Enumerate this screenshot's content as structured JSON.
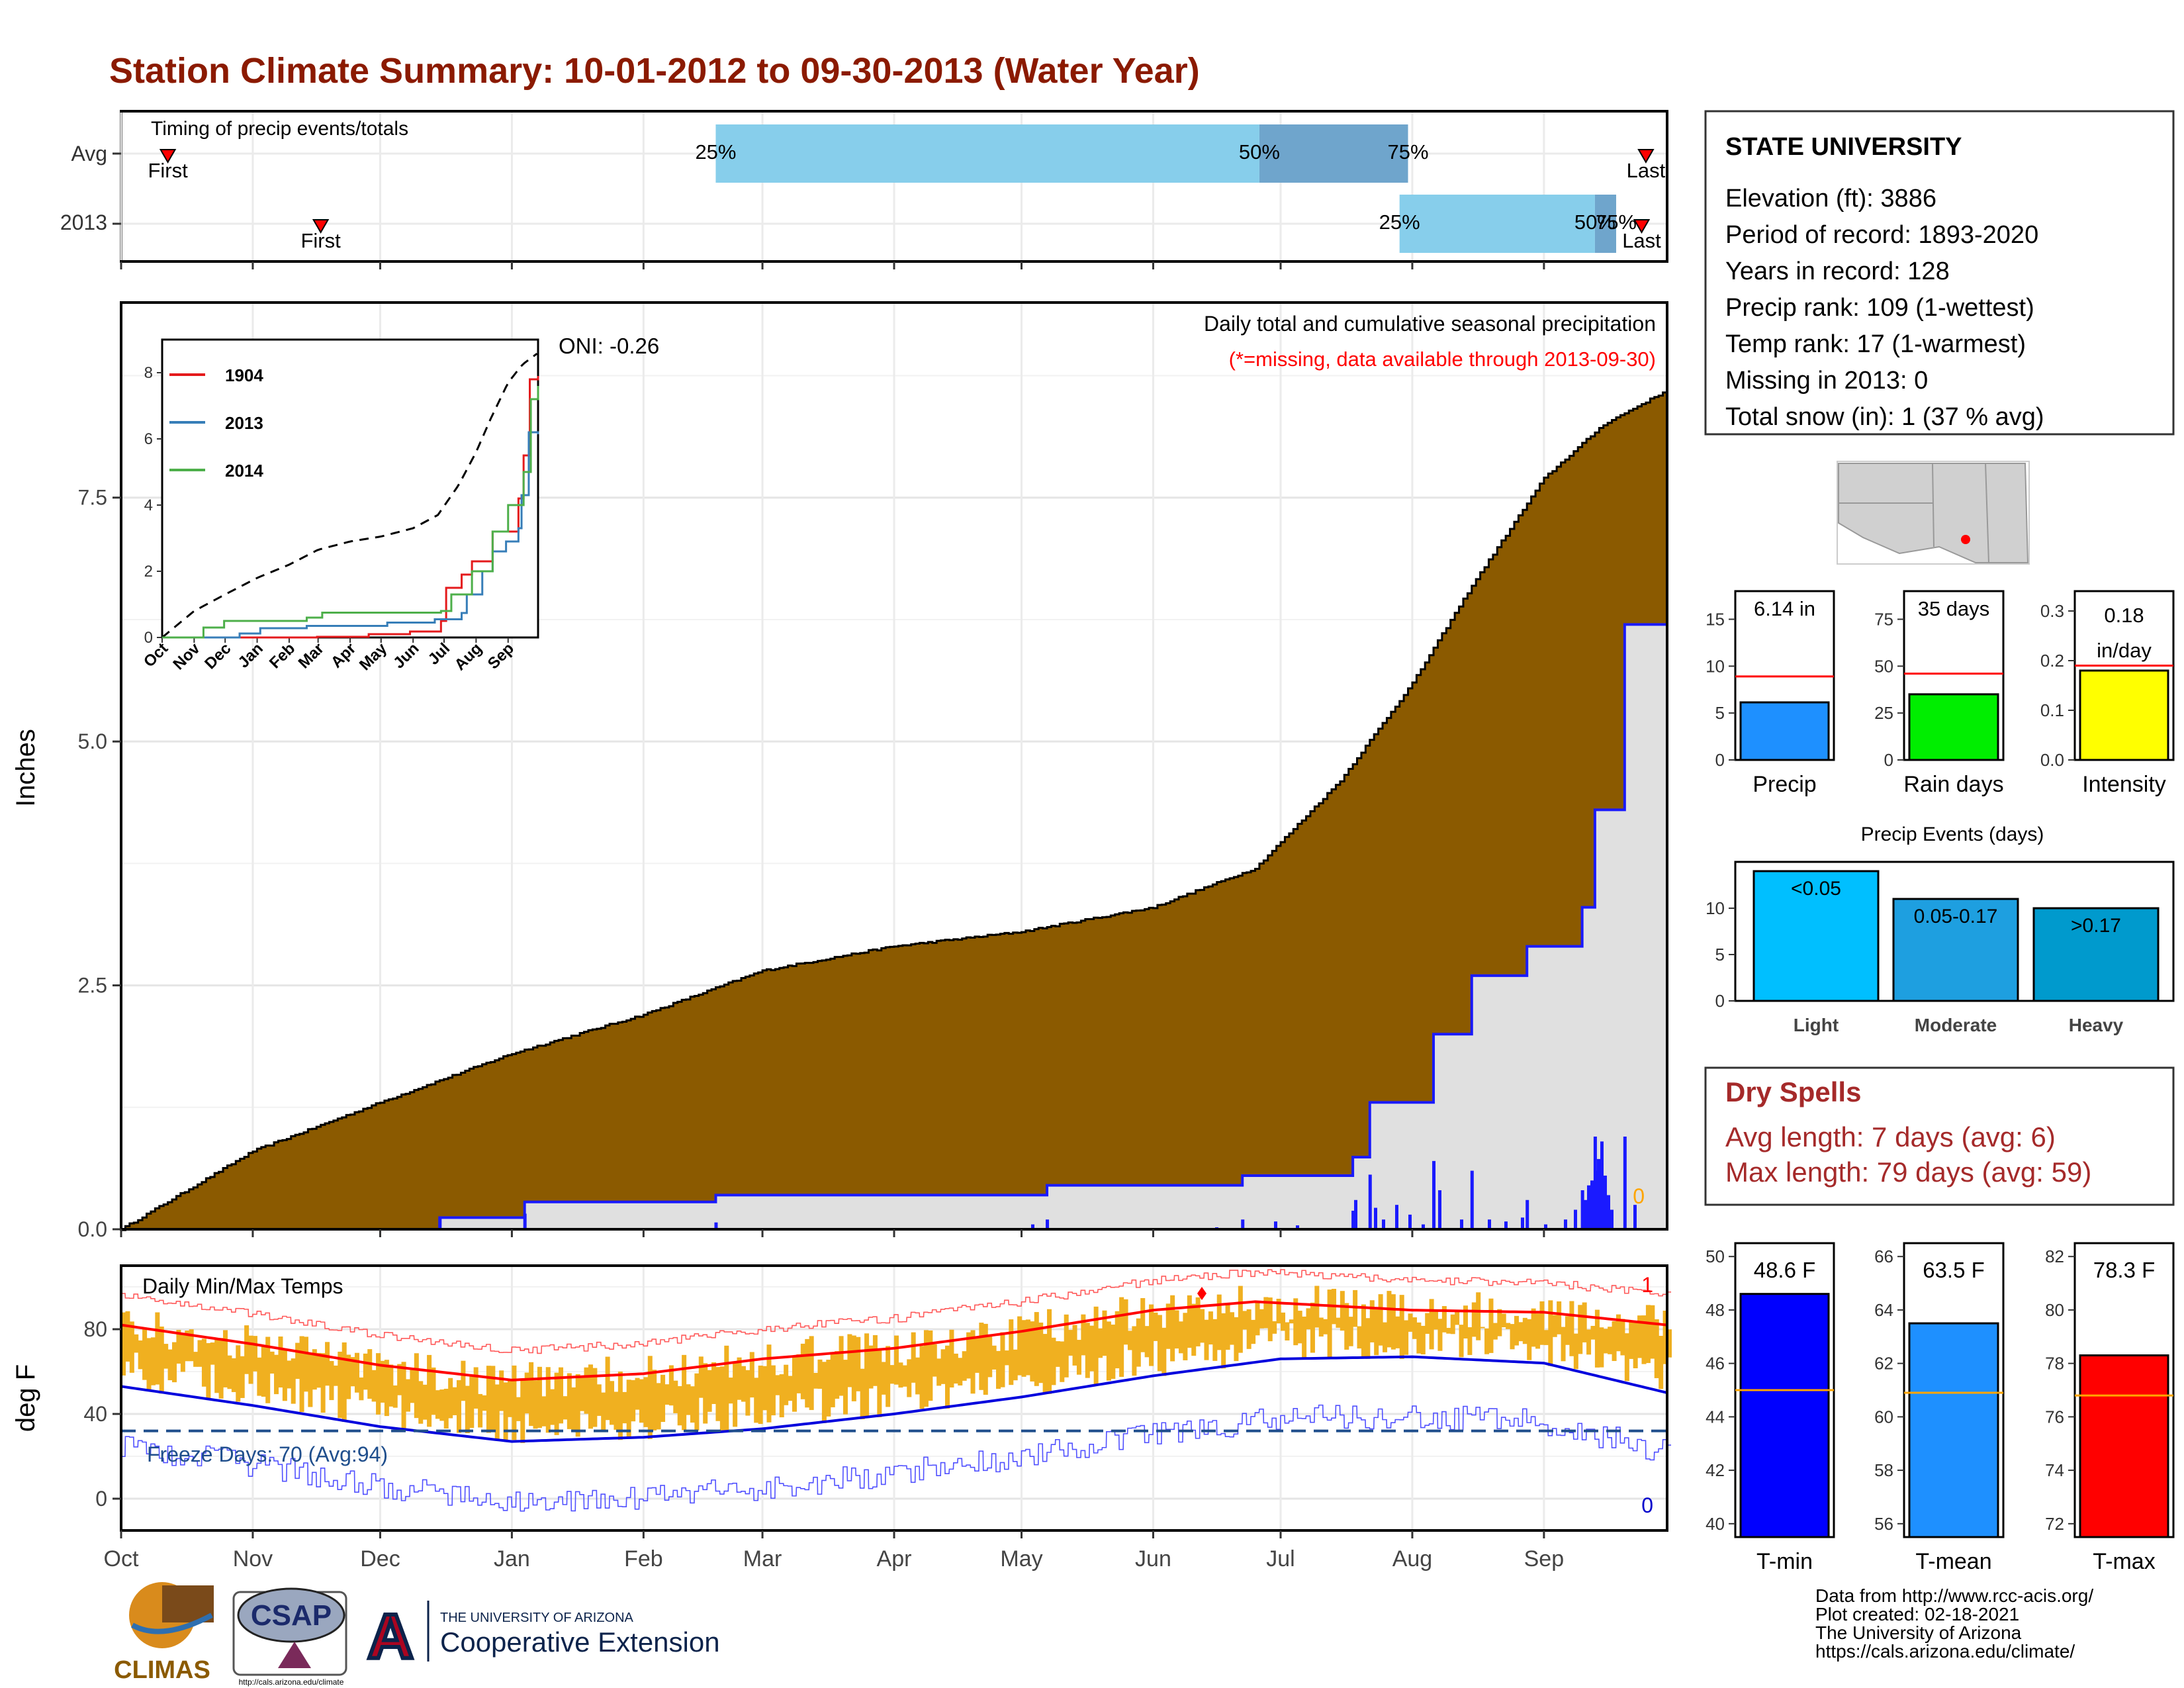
{
  "title": "Station Climate Summary: 10-01-2012 to 09-30-2013 (Water Year)",
  "timing": {
    "label": "Timing of precip events/totals",
    "rows": [
      {
        "name": "Avg",
        "first_pct_label": "First",
        "last_pct_label": "Last",
        "q25": "25%",
        "q50": "50%",
        "q75": "75%",
        "first_date": "2012-10-12",
        "last_date": "2013-09-25",
        "q25_date": "2013-02-18",
        "q50_date": "2013-06-26",
        "q75_date": "2013-07-31"
      },
      {
        "name": "2013",
        "first_pct_label": "First",
        "last_pct_label": "Last",
        "q25": "25%",
        "q50": "50%",
        "q75": "75%",
        "first_date": "2012-11-17",
        "last_date": "2013-09-24",
        "q25_date": "2013-07-29",
        "q50_date": "2013-09-13",
        "q75_date": "2013-09-18"
      }
    ]
  },
  "info": {
    "station": "STATE UNIVERSITY",
    "lines": [
      "Elevation (ft): 3886",
      "Period of record: 1893-2020",
      "Years in record: 128",
      "Precip rank: 109 (1-wettest)",
      "Temp rank: 17 (1-warmest)",
      "Missing in 2013: 0",
      "Total snow (in): 1 (37 % avg)"
    ]
  },
  "precip_panel": {
    "ylabel": "Inches",
    "header": "Daily total and cumulative seasonal precipitation",
    "subheader": "(*=missing, data available through 2013-09-30)",
    "oni": "ONI: -0.26",
    "missing_count": "0",
    "yticks": [
      "0.0",
      "2.5",
      "5.0",
      "7.5"
    ],
    "ylim": [
      0,
      9.5
    ]
  },
  "temp_panel": {
    "ylabel": "deg F",
    "header": "Daily Min/Max Temps",
    "freeze_label": "Freeze Days: 70 (Avg:94)",
    "record_high_count": "1",
    "record_low_count": "0",
    "yticks": [
      "0",
      "40",
      "80"
    ],
    "ylim": [
      -15,
      110
    ]
  },
  "x_axis": {
    "months": [
      "Oct",
      "Nov",
      "Dec",
      "Jan",
      "Feb",
      "Mar",
      "Apr",
      "May",
      "Jun",
      "Jul",
      "Aug",
      "Sep"
    ]
  },
  "inset": {
    "months": [
      "Oct",
      "Nov",
      "Dec",
      "Jan",
      "Feb",
      "Mar",
      "Apr",
      "May",
      "Jun",
      "Jul",
      "Aug",
      "Sep"
    ],
    "yticks": [
      "0",
      "2",
      "4",
      "6",
      "8"
    ],
    "legend": [
      {
        "name": "1904",
        "color": "#e41a1c"
      },
      {
        "name": "2013",
        "color": "#377eb8"
      },
      {
        "name": "2014",
        "color": "#4daf4a"
      }
    ]
  },
  "small_bars": [
    {
      "label": "Precip",
      "value_text": "6.14 in",
      "ticks": [
        "0",
        "5",
        "10",
        "15"
      ],
      "color": "#1e90ff"
    },
    {
      "label": "Rain days",
      "value_text": "35 days",
      "ticks": [
        "0",
        "25",
        "50",
        "75"
      ],
      "color": "#00ee00"
    },
    {
      "label": "Intensity",
      "value_text_1": "0.18",
      "value_text_2": "in/day",
      "ticks": [
        "0.0",
        "0.1",
        "0.2",
        "0.3"
      ],
      "color": "#ffff00"
    }
  ],
  "events": {
    "title": "Precip Events (days)",
    "ticks": [
      "0",
      "5",
      "10"
    ],
    "bars": [
      {
        "label": "Light",
        "value_text": "<0.05",
        "color": "#00bfff"
      },
      {
        "label": "Moderate",
        "value_text": "0.05-0.17",
        "color": "#1e9fe0"
      },
      {
        "label": "Heavy",
        "value_text": ">0.17",
        "color": "#009acd"
      }
    ]
  },
  "dry_spells": {
    "title": "Dry Spells",
    "avg_line": "Avg length: 7 days (avg: 6)",
    "max_line": "Max length: 79 days (avg: 59)"
  },
  "temp_bars": [
    {
      "label": "T-min",
      "value_text": "48.6 F",
      "ticks": [
        "40",
        "42",
        "44",
        "46",
        "48",
        "50"
      ],
      "color": "#0000ff"
    },
    {
      "label": "T-mean",
      "value_text": "63.5 F",
      "ticks": [
        "56",
        "58",
        "60",
        "62",
        "64",
        "66"
      ],
      "color": "#1e90ff"
    },
    {
      "label": "T-max",
      "value_text": "78.3 F",
      "ticks": [
        "72",
        "74",
        "76",
        "78",
        "80",
        "82"
      ],
      "color": "#ff0000"
    }
  ],
  "footer": [
    "Data from http://www.rcc-acis.org/",
    "Plot created: 02-18-2021",
    "The University of Arizona",
    "https://cals.arizona.edu/climate/"
  ],
  "logos": {
    "climas": "CLIMAS",
    "csap": "CSAP",
    "csap_url": "http://cals.arizona.edu/climate",
    "ua_small": "THE UNIVERSITY OF ARIZONA",
    "ua_big": "Cooperative Extension",
    "ua_letter": "A"
  },
  "chart_data": [
    {
      "type": "area",
      "title": "Daily total and cumulative seasonal precipitation",
      "ylabel": "Inches",
      "ylim": [
        0,
        9.5
      ],
      "series": [
        {
          "name": "Avg",
          "x": [
            "2012-10-01",
            "2012-11-01",
            "2012-12-01",
            "2013-01-01",
            "2013-02-01",
            "2013-03-01",
            "2013-04-01",
            "2013-05-01",
            "2013-06-01",
            "2013-06-25",
            "2013-07-15",
            "2013-08-01",
            "2013-08-15",
            "2013-09-01",
            "2013-09-15",
            "2013-09-30"
          ],
          "y": [
            0,
            0.8,
            1.3,
            1.8,
            2.2,
            2.65,
            2.9,
            3.05,
            3.3,
            3.7,
            4.6,
            5.6,
            6.6,
            7.7,
            8.25,
            8.6
          ]
        },
        {
          "name": "2013",
          "x": [
            "2012-10-01",
            "2012-12-15",
            "2013-01-04",
            "2013-02-18",
            "2013-05-07",
            "2013-06-22",
            "2013-07-18",
            "2013-07-22",
            "2013-08-06",
            "2013-08-15",
            "2013-08-28",
            "2013-09-10",
            "2013-09-13",
            "2013-09-20",
            "2013-09-30"
          ],
          "y": [
            0,
            0.12,
            0.28,
            0.35,
            0.45,
            0.55,
            0.74,
            1.3,
            2.0,
            2.6,
            2.9,
            3.3,
            4.3,
            6.2,
            6.14
          ]
        }
      ]
    },
    {
      "type": "line",
      "title": "Daily Min/Max Temps",
      "ylabel": "deg F",
      "ylim": [
        -15,
        110
      ],
      "series": [
        {
          "name": "Avg max",
          "x": [
            "2012-10-01",
            "2012-11-01",
            "2012-12-01",
            "2013-01-01",
            "2013-02-01",
            "2013-03-01",
            "2013-04-01",
            "2013-05-01",
            "2013-06-01",
            "2013-06-25",
            "2013-08-01",
            "2013-09-01",
            "2013-09-30"
          ],
          "y": [
            82,
            73,
            63,
            56,
            59,
            66,
            71,
            79,
            89,
            93,
            89,
            88,
            82
          ]
        },
        {
          "name": "Avg min",
          "x": [
            "2012-10-01",
            "2012-11-01",
            "2012-12-01",
            "2013-01-01",
            "2013-02-01",
            "2013-03-01",
            "2013-04-01",
            "2013-05-01",
            "2013-06-01",
            "2013-07-01",
            "2013-08-01",
            "2013-09-01",
            "2013-09-30"
          ],
          "y": [
            53,
            44,
            34,
            27,
            29,
            33,
            40,
            48,
            58,
            66,
            67,
            64,
            50
          ]
        }
      ],
      "freeze_line": 32
    }
  ]
}
